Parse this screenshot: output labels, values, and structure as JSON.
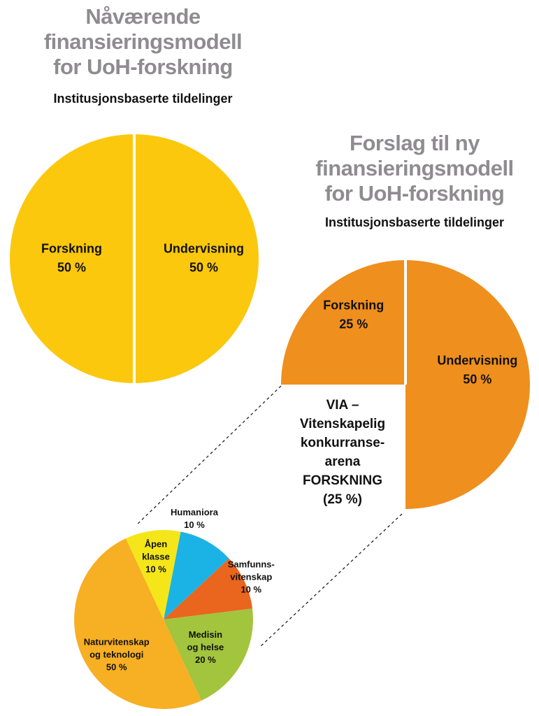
{
  "colors": {
    "current_pie": "#fbc80d",
    "proposed_pie": "#ef8f1d",
    "title_gray": "#8e8c8f",
    "divider": "#ffffff",
    "connector": "#222222"
  },
  "current": {
    "title_lines": [
      "Nåværende",
      "finansieringsmodell",
      "for UoH-forskning"
    ],
    "subtitle": "Institusjonsbaserte tildelinger"
  },
  "proposed": {
    "title_lines": [
      "Forslag til ny",
      "finansieringsmodell",
      "for UoH-forskning"
    ],
    "subtitle": "Institusjonsbaserte tildelinger"
  },
  "via": {
    "lines": [
      "VIA –",
      "Vitenskapelig",
      "konkurranse-",
      "arena",
      "FORSKNING",
      "(25 %)"
    ]
  },
  "chart_data": [
    {
      "type": "pie",
      "id": "current-pie",
      "title": "Nåværende finansieringsmodell for UoH-forskning",
      "slices": [
        {
          "key": "undervisning",
          "label_lines": [
            "Undervisning",
            "50 %"
          ],
          "value": 50,
          "color": "#fbc80d"
        },
        {
          "key": "forskning",
          "label_lines": [
            "Forskning",
            "50 %"
          ],
          "value": 50,
          "color": "#fbc80d"
        }
      ]
    },
    {
      "type": "pie",
      "id": "proposed-pie",
      "title": "Forslag til ny finansieringsmodell for UoH-forskning",
      "slices": [
        {
          "key": "undervisning",
          "label_lines": [
            "Undervisning",
            "50 %"
          ],
          "value": 50,
          "color": "#ef8f1d"
        },
        {
          "key": "via",
          "label_lines": [],
          "value": 25,
          "color": "none",
          "cut_out": true
        },
        {
          "key": "forskning",
          "label_lines": [
            "Forskning",
            "25 %"
          ],
          "value": 25,
          "color": "#ef8f1d"
        }
      ]
    },
    {
      "type": "pie",
      "id": "via-breakdown-pie",
      "title": "VIA – Vitenskapelig konkurransearena FORSKNING (25 %)",
      "slices": [
        {
          "key": "humaniora",
          "label_lines": [
            "Humaniora",
            "10 %"
          ],
          "value": 10,
          "color": "#1bb3e6"
        },
        {
          "key": "samfunnsvitenskap",
          "label_lines": [
            "Samfunns-",
            "vitenskap",
            "10 %"
          ],
          "value": 10,
          "color": "#ea651e"
        },
        {
          "key": "medisin-og-helse",
          "label_lines": [
            "Medisin",
            "og helse",
            "20 %"
          ],
          "value": 20,
          "color": "#a3c43d"
        },
        {
          "key": "naturvitenskap-og-teknologi",
          "label_lines": [
            "Naturvitenskap",
            "og teknologi",
            "50 %"
          ],
          "value": 50,
          "color": "#f7af23"
        },
        {
          "key": "apen-klasse",
          "label_lines": [
            "Åpen",
            "klasse",
            "10 %"
          ],
          "value": 10,
          "color": "#f5e61a"
        }
      ]
    }
  ]
}
